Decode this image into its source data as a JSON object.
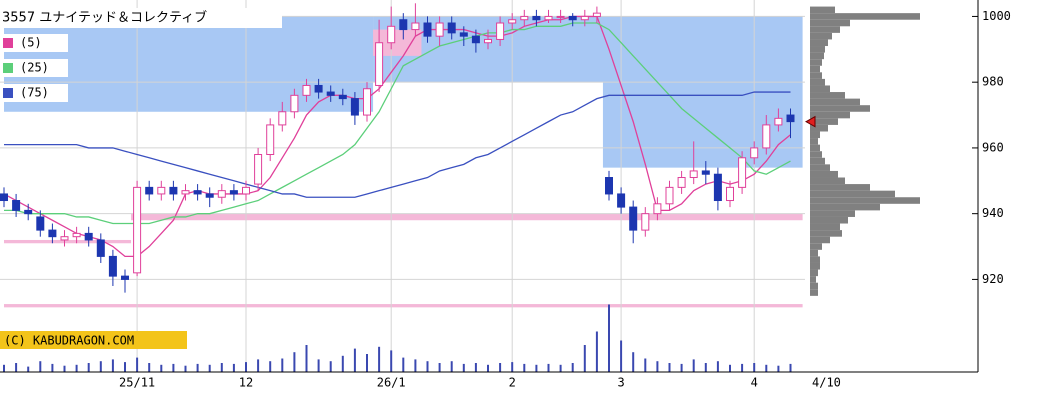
{
  "chart_data": {
    "type": "candlestick",
    "title": "3557 ユナイテッド＆コレクティブ",
    "categories": [
      null,
      null,
      null,
      null,
      null,
      null,
      null,
      null,
      null,
      null,
      null,
      "25/11",
      null,
      null,
      null,
      null,
      null,
      null,
      null,
      null,
      "12",
      null,
      null,
      null,
      null,
      null,
      null,
      null,
      null,
      null,
      null,
      null,
      "26/1",
      null,
      null,
      null,
      null,
      null,
      null,
      null,
      null,
      null,
      "2",
      null,
      null,
      null,
      null,
      null,
      null,
      null,
      null,
      "3",
      null,
      null,
      null,
      null,
      null,
      null,
      null,
      null,
      null,
      null,
      "4",
      null,
      null,
      null
    ],
    "last_date": "4/10",
    "open": [
      946,
      944,
      941,
      939,
      935,
      932,
      933,
      934,
      932,
      927,
      921,
      922,
      948,
      946,
      948,
      946,
      947,
      946,
      945,
      947,
      946,
      949,
      958,
      967,
      971,
      976,
      979,
      977,
      976,
      975,
      970,
      979,
      992,
      999,
      996,
      998,
      994,
      998,
      995,
      994,
      992,
      993,
      998,
      999,
      1000,
      999,
      1000,
      1000,
      999,
      1000,
      951,
      946,
      942,
      935,
      940,
      943,
      948,
      951,
      953,
      952,
      944,
      948,
      957,
      960,
      967,
      970
    ],
    "high": [
      948,
      946,
      943,
      941,
      937,
      935,
      936,
      936,
      934,
      929,
      923,
      950,
      950,
      950,
      950,
      949,
      949,
      948,
      949,
      949,
      950,
      960,
      969,
      974,
      978,
      981,
      981,
      979,
      978,
      977,
      980,
      999,
      1003,
      1001,
      1004,
      1000,
      1000,
      1000,
      997,
      996,
      996,
      1000,
      1001,
      1002,
      1002,
      1002,
      1002,
      1001,
      1002,
      1003,
      953,
      948,
      944,
      942,
      945,
      950,
      953,
      962,
      956,
      954,
      950,
      959,
      962,
      970,
      972,
      972
    ],
    "low": [
      942,
      939,
      938,
      933,
      931,
      930,
      931,
      930,
      925,
      918,
      916,
      921,
      944,
      944,
      944,
      944,
      944,
      942,
      943,
      944,
      944,
      947,
      956,
      965,
      969,
      974,
      975,
      974,
      973,
      967,
      968,
      977,
      990,
      993,
      994,
      992,
      991,
      993,
      991,
      989,
      990,
      991,
      996,
      997,
      997,
      998,
      998,
      997,
      997,
      998,
      944,
      940,
      931,
      933,
      938,
      941,
      946,
      949,
      949,
      941,
      942,
      946,
      955,
      958,
      965,
      963
    ],
    "close": [
      944,
      941,
      940,
      935,
      933,
      933,
      934,
      932,
      927,
      921,
      920,
      948,
      946,
      948,
      946,
      947,
      946,
      945,
      947,
      946,
      948,
      958,
      967,
      971,
      976,
      979,
      977,
      976,
      975,
      970,
      978,
      992,
      997,
      996,
      998,
      994,
      998,
      995,
      994,
      992,
      993,
      998,
      999,
      1000,
      999,
      1000,
      1000,
      999,
      1000,
      1001,
      946,
      942,
      935,
      940,
      943,
      948,
      951,
      953,
      952,
      944,
      948,
      957,
      960,
      967,
      969,
      968
    ],
    "up_color": "#e0409a",
    "down_color": "#1c36b0",
    "series": [
      {
        "name": "(5)",
        "color": "#e0409a",
        "values": [
          946,
          944,
          942,
          940,
          938,
          936,
          934,
          933,
          932,
          930,
          927,
          927,
          930,
          934,
          938,
          946,
          947,
          946,
          946,
          946,
          946,
          947,
          951,
          957,
          963,
          970,
          974,
          976,
          976,
          975,
          975,
          978,
          983,
          988,
          994,
          996,
          996,
          996,
          996,
          995,
          994,
          994,
          995,
          997,
          998,
          999,
          999,
          1000,
          1000,
          1000,
          990,
          979,
          968,
          955,
          941,
          941,
          943,
          947,
          949,
          950,
          949,
          950,
          952,
          956,
          961,
          964
        ]
      },
      {
        "name": "(25)",
        "color": "#5ccf7a",
        "values": [
          941,
          941,
          940,
          940,
          940,
          940,
          939,
          939,
          938,
          937,
          937,
          937,
          937,
          938,
          939,
          939,
          940,
          940,
          941,
          942,
          943,
          944,
          946,
          948,
          950,
          952,
          954,
          956,
          958,
          961,
          966,
          971,
          978,
          985,
          987,
          989,
          991,
          992,
          993,
          994,
          995,
          995,
          996,
          996,
          997,
          997,
          997,
          998,
          998,
          998,
          996,
          992,
          988,
          984,
          980,
          976,
          972,
          969,
          966,
          963,
          960,
          957,
          953,
          952,
          954,
          956
        ]
      },
      {
        "name": "(75)",
        "color": "#3a50c0",
        "values": [
          961,
          961,
          961,
          961,
          961,
          961,
          961,
          960,
          960,
          960,
          959,
          958,
          957,
          956,
          955,
          954,
          953,
          952,
          951,
          950,
          949,
          948,
          947,
          946,
          946,
          945,
          945,
          945,
          945,
          945,
          946,
          947,
          948,
          949,
          950,
          951,
          953,
          954,
          955,
          957,
          958,
          960,
          962,
          964,
          966,
          968,
          970,
          971,
          973,
          975,
          976,
          976,
          976,
          976,
          976,
          976,
          976,
          976,
          976,
          976,
          976,
          976,
          977,
          977,
          977,
          977
        ]
      }
    ],
    "zones": [
      {
        "from": 0,
        "to": 30.5,
        "low": 971,
        "high": 1000,
        "color": "#a8c8f4"
      },
      {
        "from": 30.5,
        "to": 66,
        "low": 980,
        "high": 1000,
        "color": "#a8c8f4"
      },
      {
        "from": 49.5,
        "to": 66,
        "low": 954,
        "high": 980,
        "color": "#a8c8f4"
      },
      {
        "from": 30.5,
        "to": 34.5,
        "low": 988,
        "high": 996,
        "color": "#f4b8d8"
      },
      {
        "from": 0,
        "to": 10.5,
        "low": 931,
        "high": 932,
        "color": "#f4b8d8"
      },
      {
        "from": 10.5,
        "to": 66,
        "low": 938,
        "high": 940,
        "color": "#f4b8d8"
      },
      {
        "from": 0,
        "to": 66,
        "low": 911.5,
        "high": 912.5,
        "color": "#f4b8d8"
      }
    ],
    "volume": {
      "color": "#3a48b0",
      "ylim": [
        0,
        80
      ],
      "values": [
        8,
        10,
        6,
        12,
        9,
        7,
        8,
        10,
        12,
        14,
        11,
        16,
        10,
        8,
        9,
        7,
        9,
        8,
        10,
        9,
        11,
        14,
        12,
        15,
        22,
        30,
        14,
        12,
        18,
        26,
        20,
        28,
        24,
        16,
        14,
        12,
        10,
        12,
        9,
        10,
        8,
        10,
        11,
        9,
        8,
        9,
        8,
        10,
        30,
        45,
        75,
        35,
        22,
        15,
        12,
        10,
        9,
        14,
        10,
        12,
        8,
        9,
        10,
        8,
        7,
        9
      ]
    },
    "price_volume": {
      "color": "#808080",
      "levels": [
        916,
        918,
        920,
        922,
        924,
        926,
        928,
        930,
        932,
        934,
        936,
        938,
        940,
        942,
        944,
        946,
        948,
        950,
        952,
        954,
        956,
        958,
        960,
        962,
        964,
        966,
        968,
        970,
        972,
        974,
        976,
        978,
        980,
        982,
        984,
        986,
        988,
        990,
        992,
        994,
        996,
        998,
        1000,
        1002
      ],
      "values": [
        8,
        8,
        6,
        8,
        10,
        10,
        8,
        12,
        20,
        32,
        30,
        38,
        45,
        70,
        110,
        85,
        60,
        35,
        28,
        20,
        15,
        12,
        10,
        8,
        10,
        18,
        28,
        40,
        60,
        50,
        35,
        20,
        15,
        12,
        10,
        12,
        14,
        15,
        18,
        22,
        30,
        40,
        110,
        25
      ]
    },
    "ylim": [
      911,
      1005
    ],
    "yticks": [
      920,
      940,
      960,
      980,
      1000
    ],
    "grid": true,
    "watermark": "(C) KABUDRAGON.COM"
  }
}
